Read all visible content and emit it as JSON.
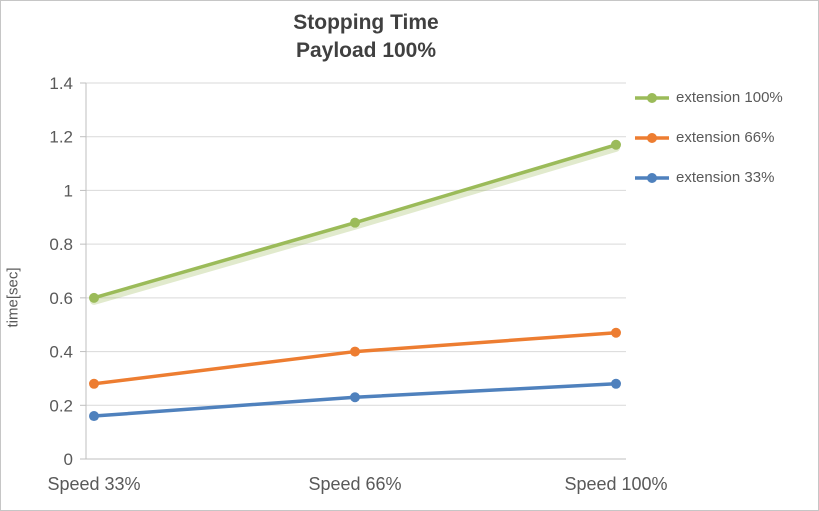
{
  "chart": {
    "title_line1": "Stopping Time",
    "title_line2": "Payload 100%",
    "ylabel": "time[sec]"
  },
  "chart_data": {
    "type": "line",
    "title": "Stopping Time Payload 100%",
    "categories": [
      "Speed 33%",
      "Speed 66%",
      "Speed 100%"
    ],
    "series": [
      {
        "name": "extension 100%",
        "color": "#9BBB59",
        "glow": true,
        "values": [
          0.6,
          0.88,
          1.17
        ]
      },
      {
        "name": "extension 66%",
        "color": "#ED7D31",
        "glow": false,
        "values": [
          0.28,
          0.4,
          0.47
        ]
      },
      {
        "name": "extension 33%",
        "color": "#4F81BD",
        "glow": false,
        "values": [
          0.16,
          0.23,
          0.28
        ]
      }
    ],
    "xlabel": "",
    "ylabel": "time[sec]",
    "ylim": [
      0,
      1.4
    ],
    "yticks": [
      0,
      0.2,
      0.4,
      0.6,
      0.8,
      1,
      1.2,
      1.4
    ],
    "ytick_labels": [
      "0",
      "0.2",
      "0.4",
      "0.6",
      "0.8",
      "1",
      "1.2",
      "1.4"
    ],
    "grid": true,
    "legend_position": "right"
  },
  "colors": {
    "grid": "#D9D9D9",
    "axis": "#BFBFBF",
    "tick_text": "#595959",
    "title_text": "#404040",
    "border": "#C6C6C6"
  }
}
